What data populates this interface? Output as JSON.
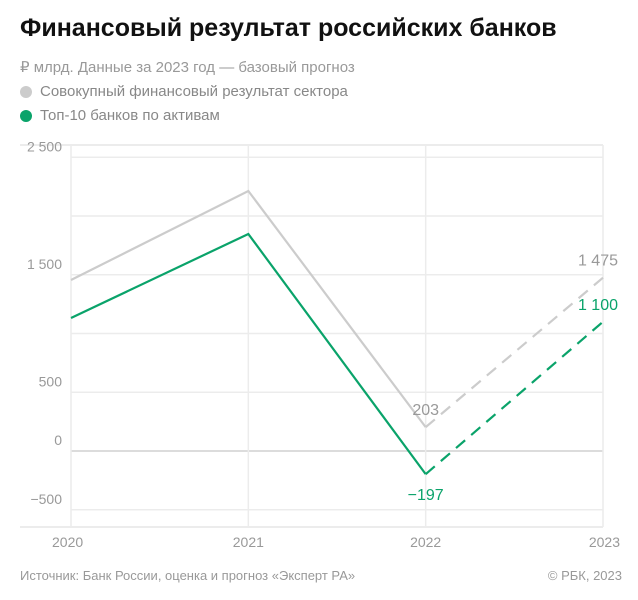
{
  "chart_data": {
    "type": "line",
    "title": "Финансовый результат российских банков",
    "subtitle": "₽ млрд. Данные за 2023 год — базовый прогноз",
    "categories": [
      "2020",
      "2021",
      "2022",
      "2023"
    ],
    "ylim": [
      -500,
      2500
    ],
    "yticks": [
      2500,
      1500,
      500,
      0,
      -500
    ],
    "ytick_labels": [
      "2 500",
      "1 500",
      "500",
      "0",
      "−500"
    ],
    "grid": true,
    "legend_placement": "top-left",
    "series": [
      {
        "name": "Совокупный финансовый результат сектора",
        "color": "#cccccc",
        "values": [
          1455,
          2213,
          203,
          1475
        ],
        "forecast_from": "2022",
        "labels": {
          "2022": "203",
          "2023": "1 475"
        }
      },
      {
        "name": "Топ-10 банков по активам",
        "color": "#0aa36a",
        "values": [
          1132,
          1847,
          -197,
          1100
        ],
        "forecast_from": "2022",
        "labels": {
          "2022": "−197",
          "2023": "1 100"
        }
      }
    ]
  },
  "footer": {
    "source": "Источник: Банк России, оценка и прогноз «Эксперт РА»",
    "copyright": "© РБК, 2023"
  }
}
